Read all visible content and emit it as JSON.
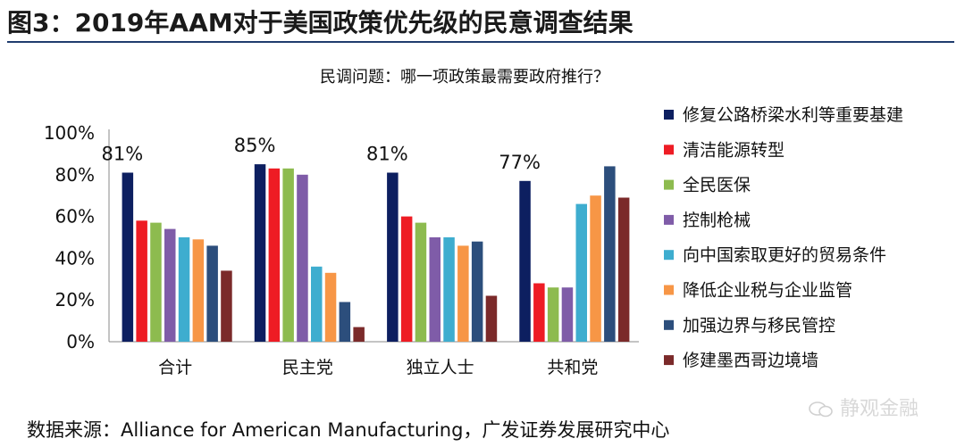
{
  "figure": {
    "title": "图3：2019年AAM对于美国政策优先级的民意调查结果",
    "source": "数据来源：Alliance for American Manufacturing，广发证券发展研究中心",
    "watermark": "静观金融"
  },
  "chart_data": {
    "type": "bar",
    "title": "民调问题：哪一项政策最需要政府推行？",
    "xlabel": "",
    "ylabel": "",
    "ylim": [
      0,
      100
    ],
    "yticks": [
      "0%",
      "20%",
      "40%",
      "60%",
      "80%",
      "100%"
    ],
    "legend_position": "right",
    "grid": false,
    "categories": [
      "合计",
      "民主党",
      "独立人士",
      "共和党"
    ],
    "category_labels": [
      "81%",
      "85%",
      "81%",
      "77%"
    ],
    "series": [
      {
        "name": "修复公路桥梁水利等重要基建",
        "color": "#0d1f60",
        "values": [
          81,
          85,
          81,
          77
        ]
      },
      {
        "name": "清洁能源转型",
        "color": "#ee1c24",
        "values": [
          58,
          83,
          60,
          28
        ]
      },
      {
        "name": "全民医保",
        "color": "#8dbb4f",
        "values": [
          57,
          83,
          57,
          26
        ]
      },
      {
        "name": "控制枪械",
        "color": "#7f5ca8",
        "values": [
          54,
          80,
          50,
          26
        ]
      },
      {
        "name": "向中国索取更好的贸易条件",
        "color": "#3eadcf",
        "values": [
          50,
          36,
          50,
          66
        ]
      },
      {
        "name": "降低企业税与企业监管",
        "color": "#f79646",
        "values": [
          49,
          33,
          46,
          70
        ]
      },
      {
        "name": "加强边界与移民管控",
        "color": "#2c4e7c",
        "values": [
          46,
          19,
          48,
          84
        ]
      },
      {
        "name": "修建墨西哥边境墙",
        "color": "#7b2a2a",
        "values": [
          34,
          7,
          22,
          69
        ]
      }
    ]
  }
}
